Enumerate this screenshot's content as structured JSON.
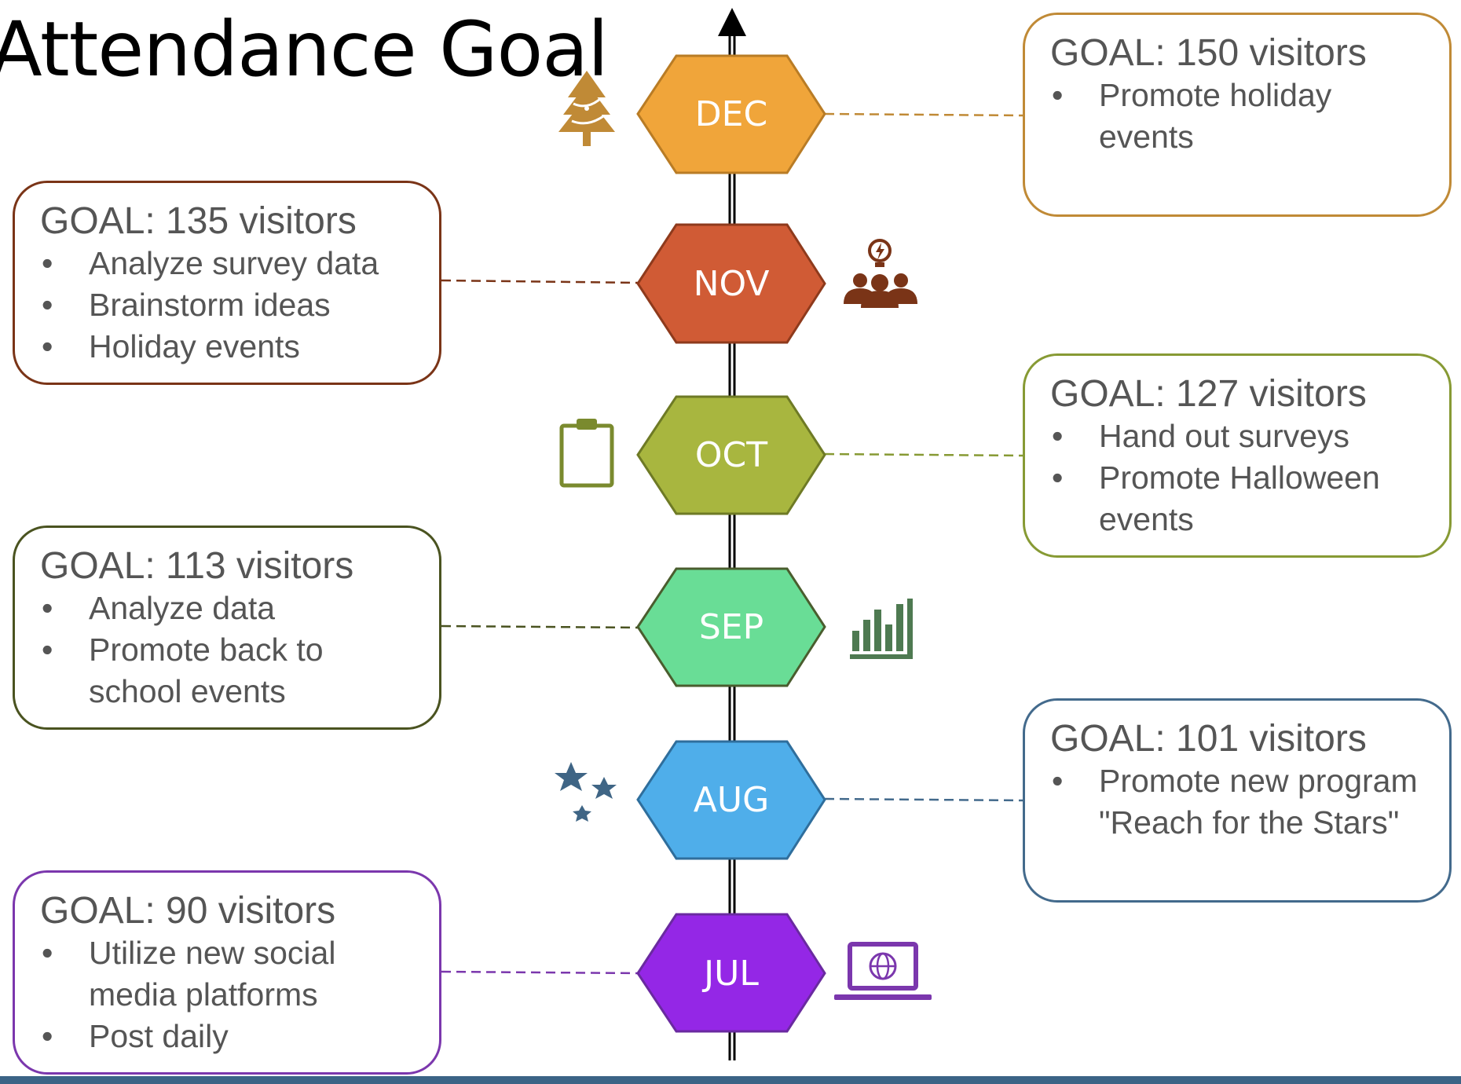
{
  "title": "Attendance Goal",
  "months": [
    {
      "id": "dec",
      "label": "DEC",
      "goal": "GOAL: 150 visitors",
      "items": [
        "Promote holiday events"
      ],
      "fill": "#f0a53a",
      "stroke": "#b97c25",
      "accent": "#c08a36",
      "icon": "christmas-tree-icon",
      "side": "right"
    },
    {
      "id": "nov",
      "label": "NOV",
      "goal": "GOAL: 135 visitors",
      "items": [
        "Analyze survey data",
        "Brainstorm ideas",
        "Holiday events"
      ],
      "fill": "#d05b35",
      "stroke": "#8e3a1c",
      "accent": "#7a3417",
      "icon": "team-idea-icon",
      "side": "left"
    },
    {
      "id": "oct",
      "label": "OCT",
      "goal": "GOAL: 127 visitors",
      "items": [
        "Hand out surveys",
        "Promote Halloween events"
      ],
      "fill": "#a8b63f",
      "stroke": "#6e7a25",
      "accent": "#879a34",
      "icon": "clipboard-icon",
      "side": "right"
    },
    {
      "id": "sep",
      "label": "SEP",
      "goal": "GOAL: 113 visitors",
      "items": [
        "Analyze data",
        "Promote back to school events"
      ],
      "fill": "#69dd96",
      "stroke": "#4a5d2e",
      "accent": "#4a5320",
      "icon": "bar-chart-icon",
      "side": "left"
    },
    {
      "id": "aug",
      "label": "AUG",
      "goal": "GOAL: 101 visitors",
      "items": [
        "Promote new program \"Reach for the Stars\""
      ],
      "fill": "#4faeea",
      "stroke": "#2f6e9c",
      "accent": "#436a8c",
      "icon": "stars-icon",
      "side": "right"
    },
    {
      "id": "jul",
      "label": "JUL",
      "goal": "GOAL: 90 visitors",
      "items": [
        "Utilize new social media platforms",
        "Post daily"
      ],
      "fill": "#9427e6",
      "stroke": "#6a2aa0",
      "accent": "#7b37ad",
      "icon": "laptop-globe-icon",
      "side": "left"
    }
  ],
  "colors": {
    "timeline": "#000000",
    "bottom_bar": "#3b6486",
    "box_text": "#555555",
    "hex_text": "#ffffff"
  }
}
